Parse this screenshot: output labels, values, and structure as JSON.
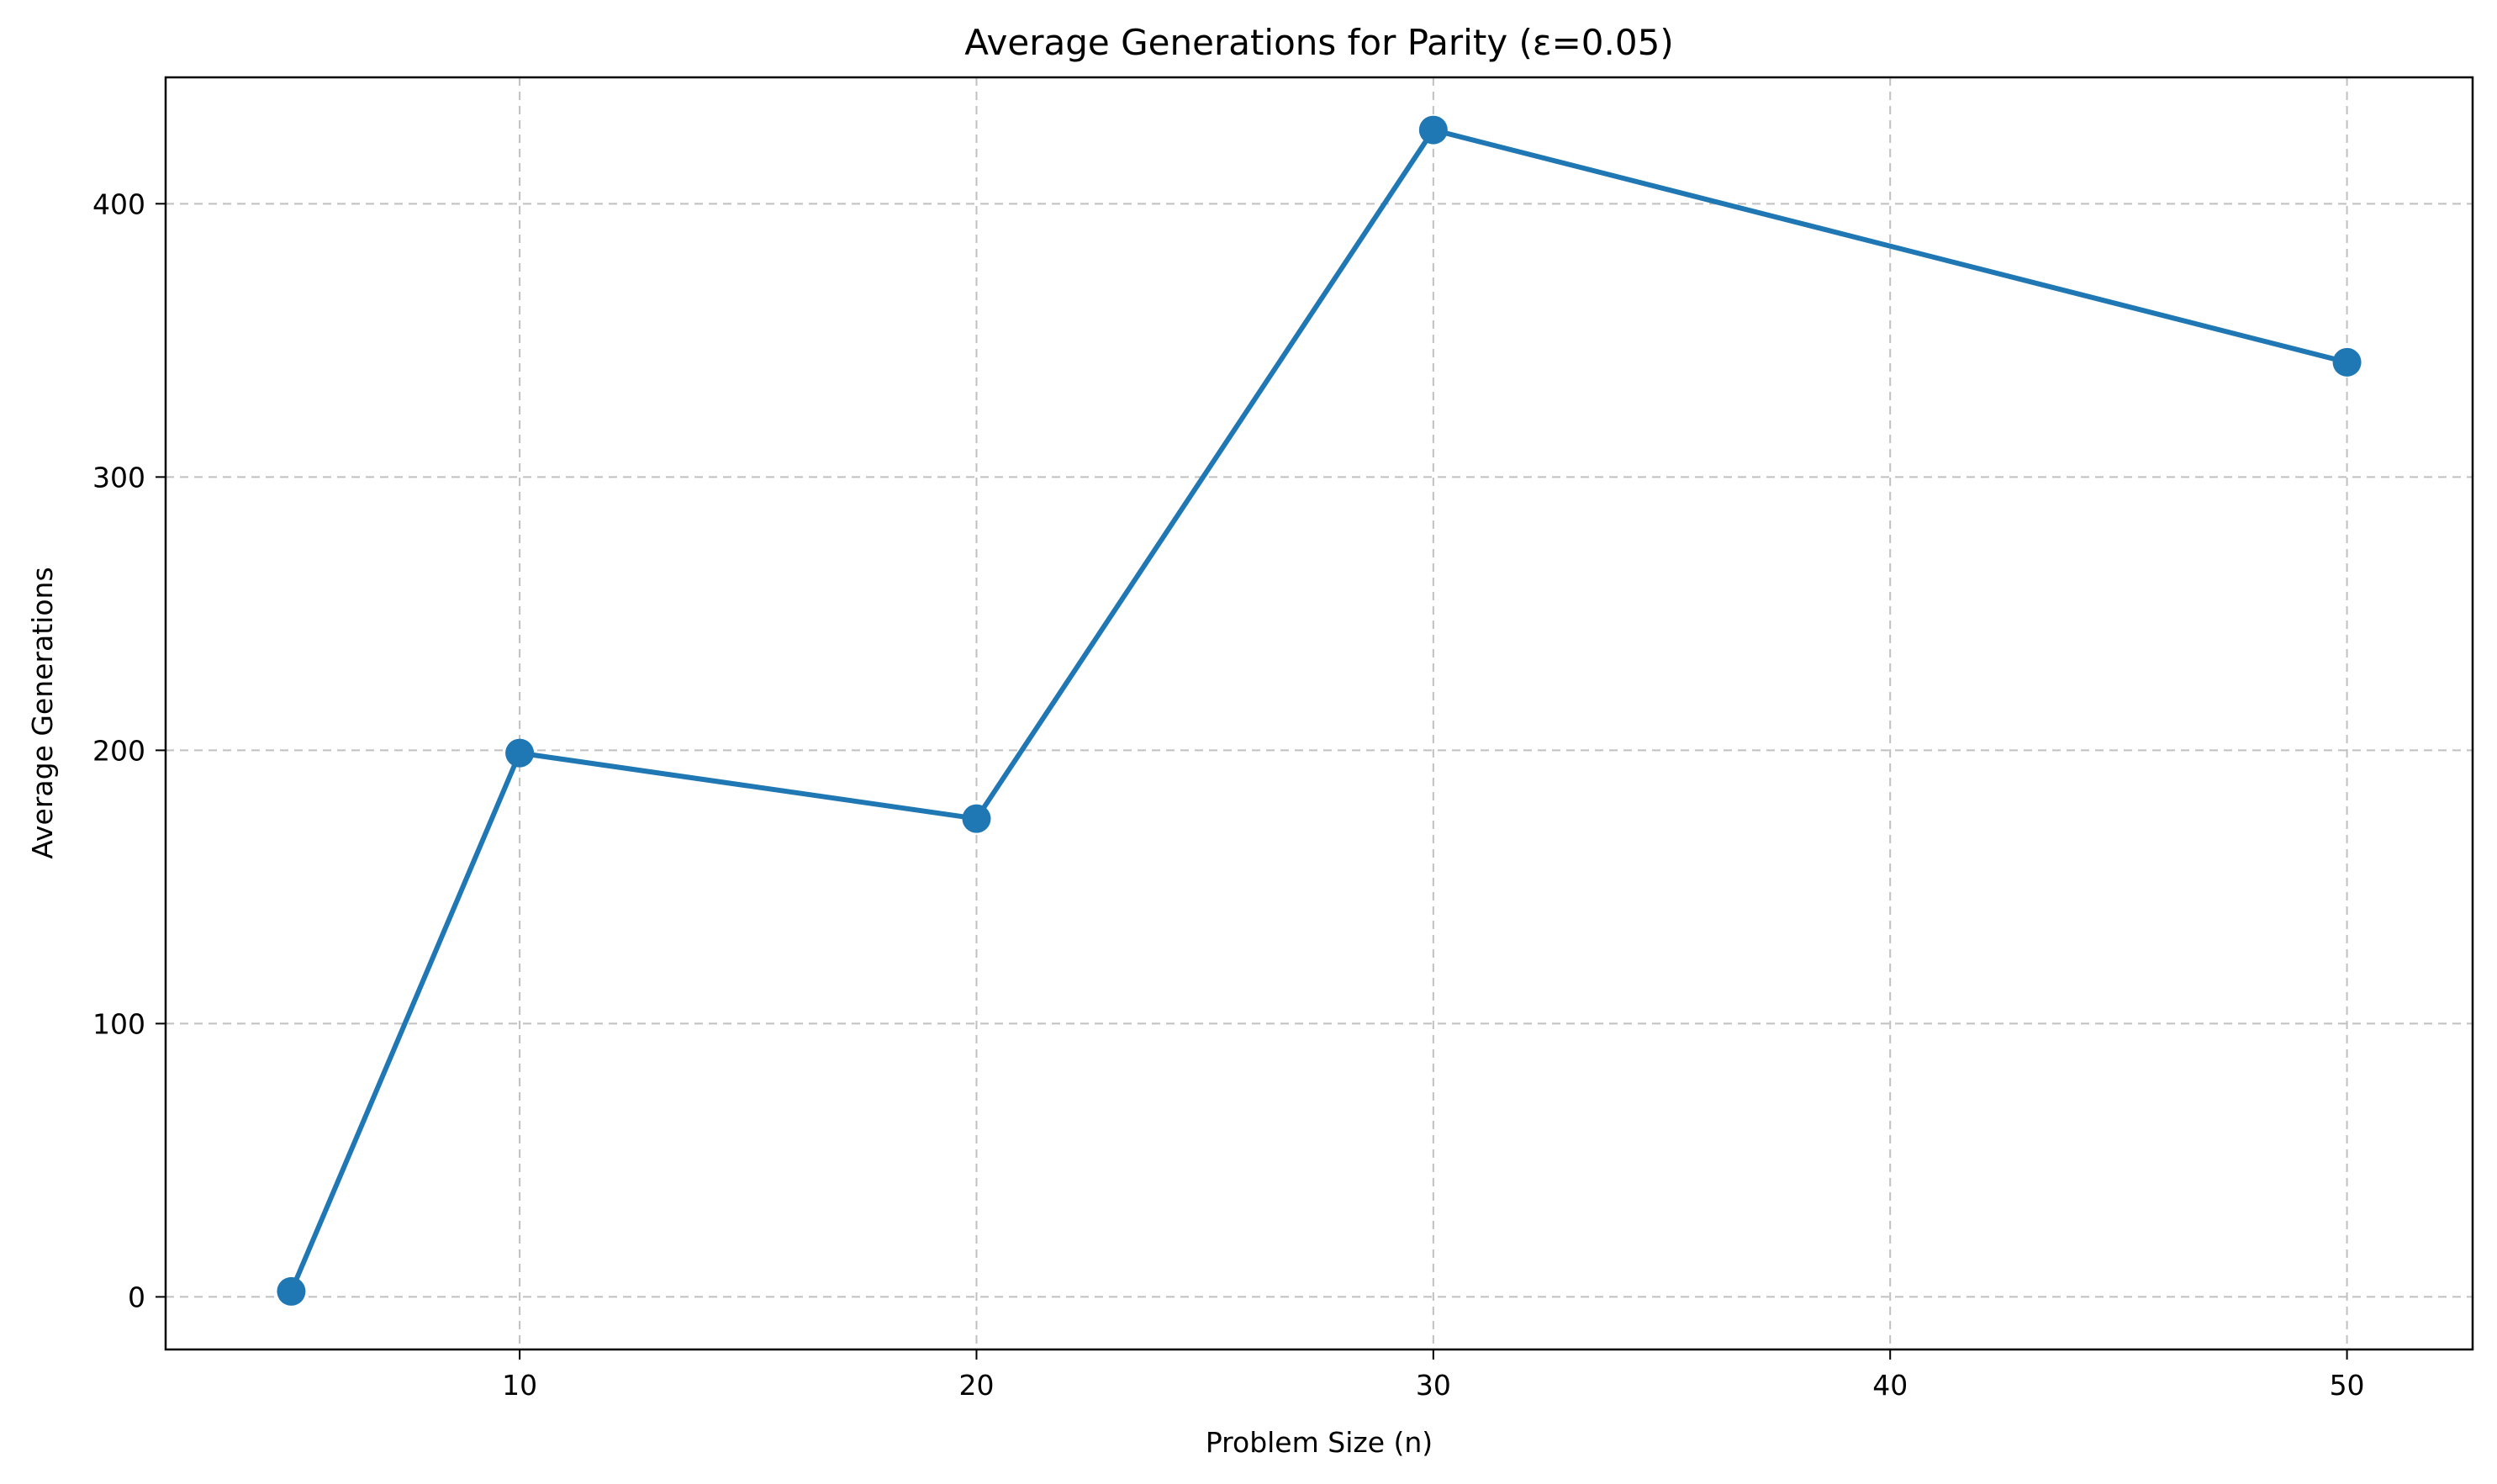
{
  "chart_data": {
    "type": "line",
    "title": "Average Generations for Parity (ε=0.05)",
    "xlabel": "Problem Size (n)",
    "ylabel": "Average Generations",
    "x": [
      5,
      10,
      20,
      30,
      50
    ],
    "series": [
      {
        "values": [
          2,
          199,
          175,
          427,
          342
        ],
        "color": "#1f77b4",
        "marker": "circle"
      }
    ],
    "xlim": [
      2.25,
      52.75
    ],
    "ylim": [
      -19.25,
      446.25
    ],
    "xticks": [
      10,
      20,
      30,
      40,
      50
    ],
    "yticks": [
      0,
      100,
      200,
      300,
      400
    ],
    "grid": true,
    "grid_style": "dashed"
  }
}
